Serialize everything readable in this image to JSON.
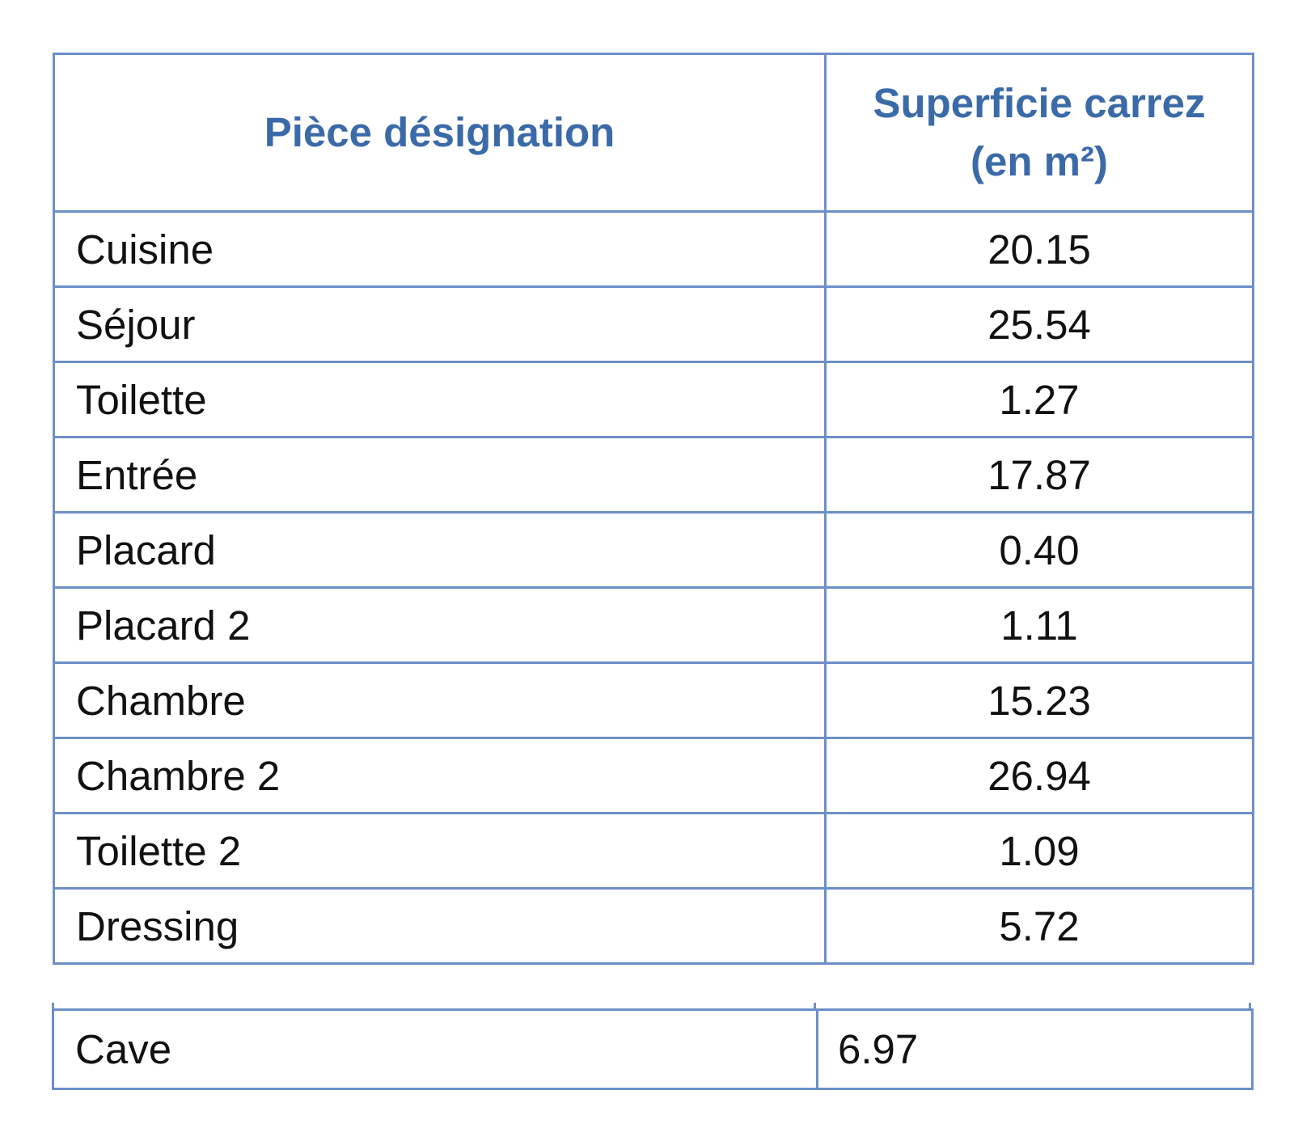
{
  "table": {
    "header": {
      "room": "Pièce désignation",
      "area_line1": "Superficie carrez",
      "area_line2": "(en m²)"
    },
    "rows": [
      {
        "room": "Cuisine",
        "area": "20.15"
      },
      {
        "room": "Séjour",
        "area": "25.54"
      },
      {
        "room": "Toilette",
        "area": "1.27"
      },
      {
        "room": "Entrée",
        "area": "17.87"
      },
      {
        "room": "Placard",
        "area": "0.40"
      },
      {
        "room": "Placard 2",
        "area": "1.11"
      },
      {
        "room": "Chambre",
        "area": "15.23"
      },
      {
        "room": "Chambre 2",
        "area": "26.94"
      },
      {
        "room": "Toilette 2",
        "area": "1.09"
      },
      {
        "room": "Dressing",
        "area": "5.72"
      }
    ]
  },
  "extra_table": {
    "rows": [
      {
        "room": "Cave",
        "area": "6.97"
      }
    ]
  },
  "colors": {
    "border": "#6d8fc8",
    "header_text": "#3b6aa8",
    "body_text": "#111111"
  }
}
